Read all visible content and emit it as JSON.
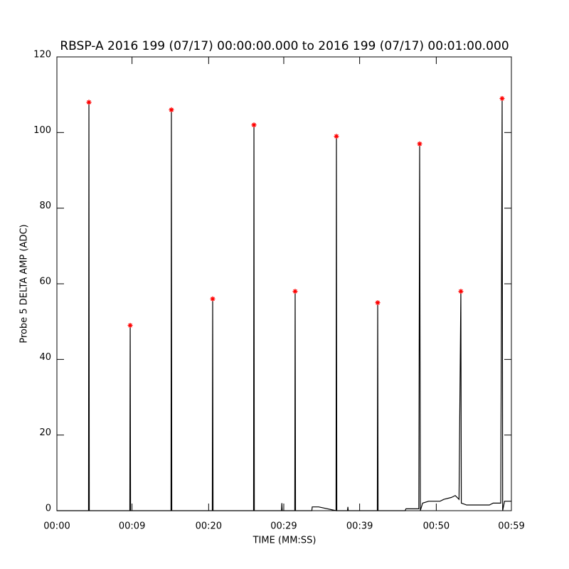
{
  "chart_data": {
    "type": "line",
    "title": "RBSP-A 2016 199 (07/17) 00:00:00.000 to 2016 199 (07/17) 00:01:00.000",
    "x_label": "TIME (MM:SS)",
    "y_label": "Probe 5 DELTA AMP (ADC)",
    "xlim": [
      0,
      59.9
    ],
    "ylim": [
      0,
      120
    ],
    "xticks": [
      {
        "value": 0,
        "label": "00:00"
      },
      {
        "value": 9.9,
        "label": "00:09"
      },
      {
        "value": 20,
        "label": "00:20"
      },
      {
        "value": 29.9,
        "label": "00:29"
      },
      {
        "value": 39.9,
        "label": "00:39"
      },
      {
        "value": 50,
        "label": "00:50"
      },
      {
        "value": 59.9,
        "label": "00:59"
      }
    ],
    "yticks": [
      0,
      20,
      40,
      60,
      80,
      100,
      120
    ],
    "series": [
      {
        "type": "line",
        "color": "#000000",
        "x": [
          0,
          4.17,
          4.22,
          4.27,
          9.61,
          9.66,
          9.71,
          15.04,
          15.09,
          15.14,
          20.48,
          20.53,
          20.58,
          25.92,
          25.97,
          26.02,
          29.6,
          29.65,
          29.7,
          31.35,
          31.4,
          31.45,
          33.6,
          33.65,
          34.5,
          36.79,
          36.84,
          36.89,
          38.3,
          38.35,
          38.4,
          42.23,
          42.28,
          42.33,
          45.9,
          46.0,
          47.7,
          47.81,
          47.9,
          48.2,
          49.0,
          50.5,
          51.0,
          52.0,
          52.5,
          53.0,
          53.24,
          53.3,
          54.0,
          57.0,
          57.5,
          58.5,
          58.68,
          58.75,
          59.0,
          59.9
        ],
        "values": [
          0,
          0,
          108,
          0,
          0,
          49,
          0,
          0,
          106,
          0,
          0,
          56,
          0,
          0,
          102,
          0,
          0,
          2,
          0,
          0,
          58,
          0,
          0,
          1,
          1,
          0,
          99,
          0,
          0,
          1,
          0,
          0,
          55,
          0,
          0,
          0.5,
          0.5,
          97,
          0,
          2,
          2.5,
          2.5,
          3,
          3.5,
          4,
          3,
          58,
          2,
          1.5,
          1.5,
          2,
          2,
          109,
          0,
          2.5,
          2.5
        ]
      },
      {
        "type": "scatter",
        "color": "#ff0000",
        "x": [
          4.22,
          9.66,
          15.09,
          20.53,
          25.97,
          31.4,
          36.84,
          42.28,
          47.81,
          53.24,
          58.68
        ],
        "values": [
          108,
          49,
          106,
          56,
          102,
          58,
          99,
          55,
          97,
          58,
          109
        ]
      }
    ]
  }
}
